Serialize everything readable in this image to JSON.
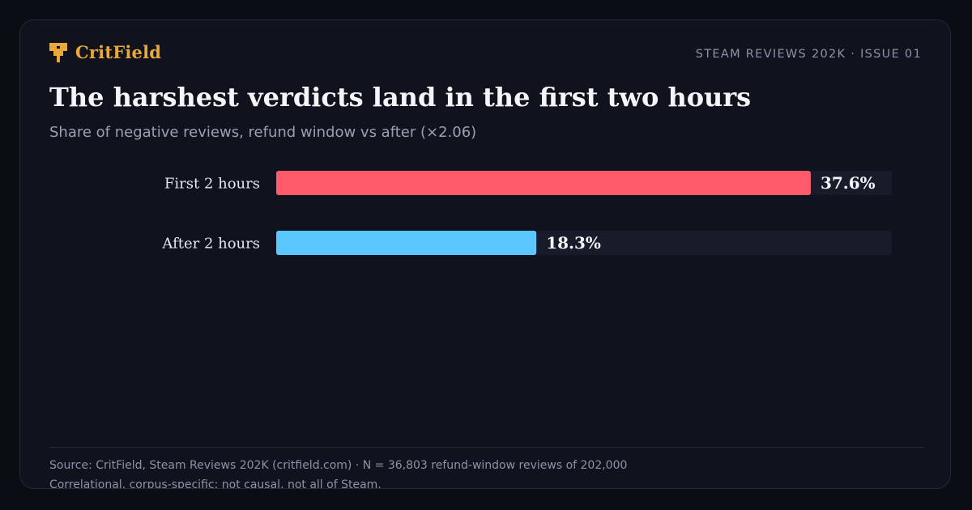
{
  "brand": {
    "name": "CritField",
    "color": "#e8a93a",
    "icon": "critfield-logo-icon"
  },
  "header": {
    "issue_label": "STEAM REVIEWS 202K · ISSUE 01"
  },
  "chart_data": {
    "type": "bar",
    "orientation": "horizontal",
    "title": "The harshest verdicts land in the first two hours",
    "subtitle": "Share of negative reviews, refund window vs after (×2.06)",
    "categories": [
      "First 2 hours",
      "After 2 hours"
    ],
    "values": [
      37.6,
      18.3
    ],
    "value_labels": [
      "37.6%",
      "18.3%"
    ],
    "colors": [
      "#ff5a6a",
      "#5ac8ff"
    ],
    "track_color": "#171b2a",
    "xlim": [
      0,
      43.3
    ],
    "xlabel": "",
    "ylabel": "",
    "grid": false,
    "legend": "none"
  },
  "footer": {
    "source": "Source: CritField, Steam Reviews 202K (critfield.com) · N = 36,803 refund-window reviews of 202,000",
    "caveat": "Correlational, corpus-specific; not causal, not all of Steam."
  }
}
